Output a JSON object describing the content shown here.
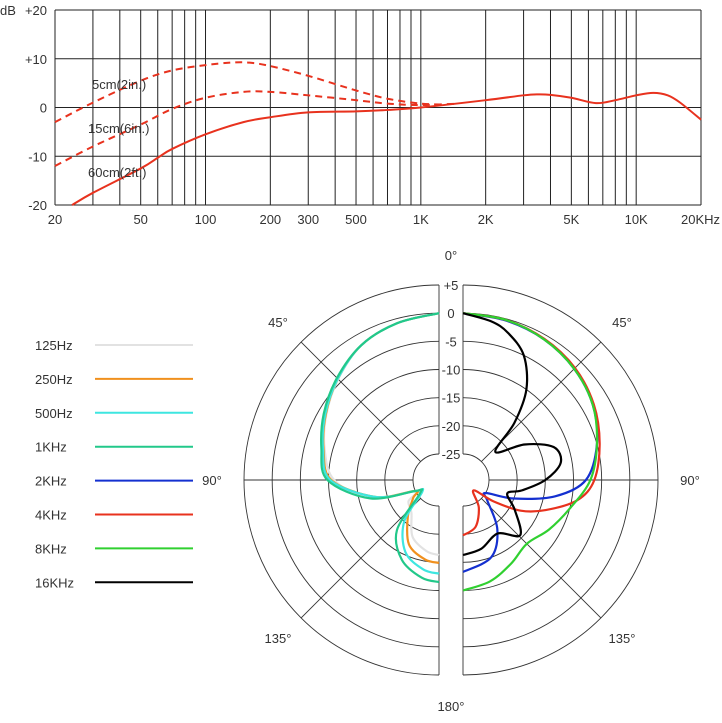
{
  "chart_data": [
    {
      "type": "line",
      "x_scale": "log",
      "xlim": [
        20,
        20000
      ],
      "ylim": [
        -20,
        20
      ],
      "ylabel": "dB",
      "grid": true,
      "x_ticks": [
        20,
        50,
        100,
        200,
        300,
        500,
        1000,
        2000,
        5000,
        10000,
        20000
      ],
      "x_tick_labels": [
        "20",
        "50",
        "100",
        "200",
        "300",
        "500",
        "1K",
        "2K",
        "5K",
        "10K",
        "20KHz"
      ],
      "y_ticks": [
        20,
        10,
        0,
        -10,
        -20
      ],
      "y_tick_labels": [
        "+20",
        "+10",
        "0",
        "-10",
        "-20"
      ],
      "series": [
        {
          "name": "5cm(2in.)",
          "style": "dashed",
          "color": "#e8321e",
          "x": [
            20,
            30,
            50,
            70,
            100,
            130,
            160,
            200,
            300,
            500,
            700,
            1000,
            1300
          ],
          "y": [
            -3,
            1,
            5.5,
            7.6,
            8.7,
            9.2,
            9.2,
            8.5,
            6.5,
            3.5,
            1.8,
            0.8,
            0.6
          ]
        },
        {
          "name": "15cm(6in.)",
          "style": "dashed",
          "color": "#e8321e",
          "x": [
            20,
            30,
            50,
            70,
            100,
            150,
            200,
            300,
            500,
            700,
            1000,
            1500
          ],
          "y": [
            -12,
            -8,
            -3.5,
            -0.3,
            2,
            3.2,
            3.2,
            2.5,
            1.5,
            0.8,
            0.5,
            0.8
          ]
        },
        {
          "name": "60cm(2ft.)",
          "style": "solid",
          "color": "#e8321e",
          "x": [
            24,
            30,
            50,
            60,
            70,
            100,
            150,
            200,
            300,
            500,
            700,
            1000,
            2000,
            3000,
            3500,
            4000,
            5000,
            6500,
            8000,
            10000,
            12000,
            14000,
            16000,
            20000
          ],
          "y": [
            -20,
            -17.5,
            -12.5,
            -10.3,
            -8.5,
            -5.5,
            -3,
            -2,
            -1,
            -0.8,
            -0.5,
            0,
            1.5,
            2.5,
            2.7,
            2.6,
            2,
            0.9,
            1.5,
            2.5,
            3,
            2.5,
            1,
            -2.5
          ]
        }
      ]
    },
    {
      "type": "polar",
      "rlim": [
        -25,
        5
      ],
      "radial_ticks": [
        5,
        0,
        -5,
        -10,
        -15,
        -20,
        -25
      ],
      "radial_tick_labels": [
        "+5",
        "0",
        "-5",
        "-10",
        "-15",
        "-20",
        "-25"
      ],
      "angle_labels": {
        "top": "0°",
        "bottom": "180°",
        "a45": "45°",
        "a90": "90°",
        "a135": "135°"
      },
      "legend_position": "left",
      "series": [
        {
          "name": "125Hz",
          "color": "#e2e2e2",
          "side": "left",
          "angle": [
            0,
            15,
            30,
            45,
            60,
            75,
            90,
            105,
            115,
            125,
            140,
            155,
            170,
            180
          ],
          "db": [
            0,
            -0.8,
            -2,
            -4.3,
            -6.5,
            -8.6,
            -11,
            -17,
            -25,
            -23,
            -22,
            -18.5,
            -16.8,
            -16.3
          ]
        },
        {
          "name": "250Hz",
          "color": "#f0901e",
          "side": "left",
          "angle": [
            0,
            15,
            30,
            45,
            60,
            75,
            90,
            105,
            115,
            125,
            140,
            155,
            170,
            180
          ],
          "db": [
            0,
            -0.8,
            -2,
            -4.2,
            -6.4,
            -8.4,
            -10.5,
            -18,
            -25,
            -24,
            -21,
            -17,
            -15.3,
            -14.9
          ]
        },
        {
          "name": "500Hz",
          "color": "#3ee6e0",
          "side": "left",
          "angle": [
            0,
            15,
            30,
            45,
            60,
            75,
            90,
            105,
            115,
            125,
            140,
            155,
            170,
            180
          ],
          "db": [
            0,
            -0.8,
            -2,
            -4.2,
            -6.3,
            -8.3,
            -10.3,
            -18,
            -25,
            -26,
            -20,
            -15.5,
            -13.5,
            -13
          ]
        },
        {
          "name": "1KHz",
          "color": "#22c88a",
          "side": "left",
          "angle": [
            0,
            15,
            30,
            45,
            60,
            75,
            90,
            105,
            115,
            125,
            140,
            155,
            170,
            180
          ],
          "db": [
            0,
            -0.8,
            -2,
            -4,
            -6,
            -8,
            -9.8,
            -17,
            -25,
            -25.5,
            -18,
            -14,
            -12,
            -11.5
          ]
        },
        {
          "name": "2KHz",
          "color": "#1430d0",
          "side": "right",
          "angle": [
            0,
            15,
            30,
            45,
            60,
            75,
            90,
            100,
            110,
            120,
            130,
            145,
            160,
            180
          ],
          "db": [
            0,
            -0.3,
            -0.8,
            -1.7,
            -3,
            -5,
            -7.8,
            -13,
            -20,
            -25,
            -24,
            -19,
            -15,
            -13.3
          ]
        },
        {
          "name": "4KHz",
          "color": "#e8321e",
          "side": "right",
          "angle": [
            0,
            15,
            30,
            45,
            60,
            75,
            90,
            100,
            110,
            118,
            125,
            135,
            150,
            165,
            180
          ],
          "db": [
            0,
            -0.2,
            -0.7,
            -1.5,
            -2.8,
            -4.5,
            -6.3,
            -9,
            -14,
            -18,
            -23,
            -27,
            -24,
            -21,
            -19.8
          ]
        },
        {
          "name": "8KHz",
          "color": "#30d030",
          "side": "right",
          "angle": [
            0,
            15,
            30,
            45,
            60,
            75,
            90,
            105,
            120,
            135,
            150,
            165,
            180
          ],
          "db": [
            0,
            -0.2,
            -0.8,
            -1.7,
            -3,
            -5,
            -7,
            -10,
            -12,
            -13.6,
            -12.5,
            -11,
            -10
          ]
        },
        {
          "name": "16KHz",
          "color": "#000000",
          "side": "right",
          "angle": [
            0,
            10,
            17,
            26,
            35,
            42,
            49,
            60,
            70,
            80,
            90,
            100,
            107,
            120,
            134,
            147,
            165,
            180
          ],
          "db": [
            0,
            -1,
            -2.3,
            -5,
            -10,
            -16,
            -22,
            -17,
            -12.5,
            -12,
            -15,
            -19,
            -21.4,
            -19,
            -15.5,
            -18.3,
            -17,
            -16.3
          ]
        }
      ]
    }
  ]
}
